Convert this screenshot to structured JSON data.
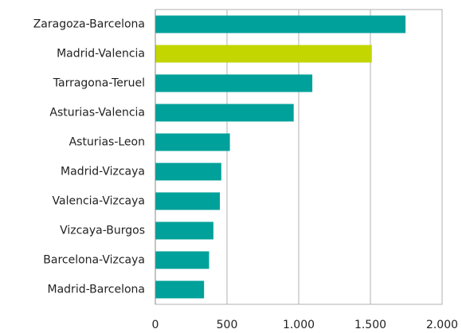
{
  "chart_data": {
    "type": "barh",
    "categories": [
      "Zaragoza-Barcelona",
      "Madrid-Valencia",
      "Tarragona-Teruel",
      "Asturias-Valencia",
      "Asturias-Leon",
      "Madrid-Vizcaya",
      "Valencia-Vizcaya",
      "Vizcaya-Burgos",
      "Barcelona-Vizcaya",
      "Madrid-Barcelona"
    ],
    "values": [
      1745,
      1510,
      1095,
      965,
      520,
      460,
      450,
      405,
      375,
      340
    ],
    "colors": [
      "#00a19a",
      "#c3d600",
      "#00a19a",
      "#00a19a",
      "#00a19a",
      "#00a19a",
      "#00a19a",
      "#00a19a",
      "#00a19a",
      "#00a19a"
    ],
    "xlim": [
      0,
      2000
    ],
    "xticks": [
      0,
      500,
      {
        "value": 1000,
        "label": "1.000"
      },
      {
        "value": 1500,
        "label": "1.500"
      },
      {
        "value": 2000,
        "label": "2.000"
      }
    ],
    "grid": true
  }
}
